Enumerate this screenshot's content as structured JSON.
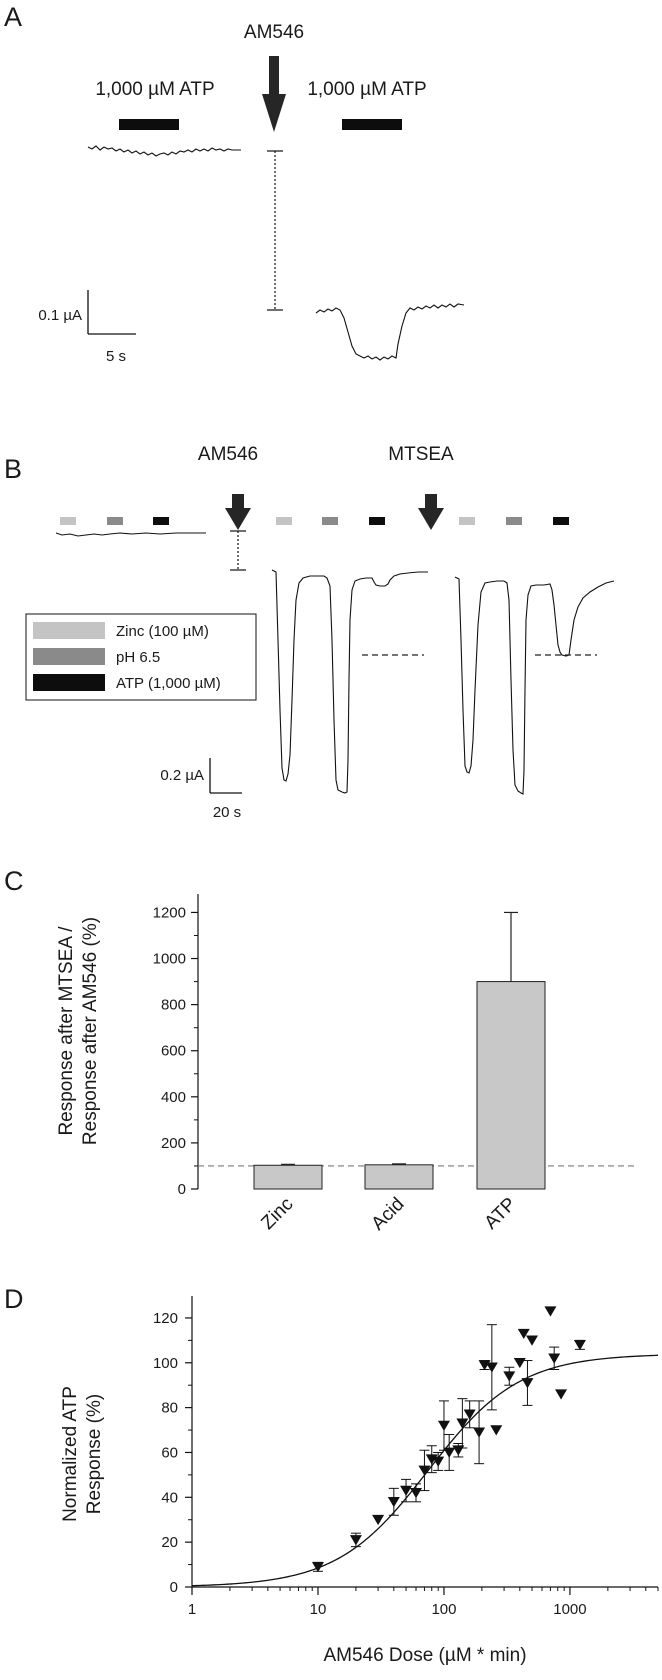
{
  "panel_a": {
    "letter": "A",
    "arrow_label": "AM546",
    "left_bar_label": "1,000 µM ATP",
    "right_bar_label": "1,000 µM ATP",
    "scale_y": "0.1 µA",
    "scale_x": "5 s"
  },
  "panel_b": {
    "letter": "B",
    "arrow1_label": "AM546",
    "arrow2_label": "MTSEA",
    "legend": [
      {
        "label": "Zinc (100 µM)",
        "color": "#c4c4c4"
      },
      {
        "label": "pH 6.5",
        "color": "#8a8a8a"
      },
      {
        "label": "ATP (1,000 µM)",
        "color": "#0d0d0d"
      }
    ],
    "scale_y": "0.2 µA",
    "scale_x": "20 s"
  },
  "panel_c": {
    "letter": "C",
    "chart_data": {
      "type": "bar",
      "ylabel_line1": "Response after MTSEA /",
      "ylabel_line2": "Response after AM546 (%)",
      "categories": [
        "Zinc",
        "Acid",
        "ATP"
      ],
      "values": [
        103,
        105,
        900
      ],
      "errors": [
        4,
        4,
        300
      ],
      "ylim": [
        0,
        1280
      ],
      "yticks": [
        0,
        200,
        400,
        600,
        800,
        1000,
        1200
      ],
      "reference_line": 100,
      "bar_color": "#c8c8c8"
    }
  },
  "panel_d": {
    "letter": "D",
    "chart_data": {
      "type": "scatter",
      "xlabel": "AM546 Dose (µM * min)",
      "ylabel_line1": "Normalized ATP",
      "ylabel_line2": "Response (%)",
      "x_scale": "log",
      "xlim": [
        1,
        5000
      ],
      "ylim": [
        0,
        128
      ],
      "xticks": [
        1,
        10,
        100,
        1000
      ],
      "yticks": [
        0,
        20,
        40,
        60,
        80,
        100,
        120
      ],
      "points": [
        {
          "x": 10,
          "y": 9,
          "err": 2
        },
        {
          "x": 20,
          "y": 21,
          "err": 3
        },
        {
          "x": 30,
          "y": 30,
          "err": 0
        },
        {
          "x": 40,
          "y": 38,
          "err": 6
        },
        {
          "x": 50,
          "y": 43,
          "err": 5
        },
        {
          "x": 60,
          "y": 42,
          "err": 4
        },
        {
          "x": 70,
          "y": 52,
          "err": 9
        },
        {
          "x": 80,
          "y": 57,
          "err": 6
        },
        {
          "x": 90,
          "y": 56,
          "err": 4
        },
        {
          "x": 100,
          "y": 72,
          "err": 11
        },
        {
          "x": 110,
          "y": 60,
          "err": 8
        },
        {
          "x": 130,
          "y": 61,
          "err": 3
        },
        {
          "x": 140,
          "y": 73,
          "err": 11
        },
        {
          "x": 160,
          "y": 77,
          "err": 6
        },
        {
          "x": 190,
          "y": 69,
          "err": 14
        },
        {
          "x": 210,
          "y": 99,
          "err": 2
        },
        {
          "x": 240,
          "y": 98,
          "err": 19
        },
        {
          "x": 260,
          "y": 70,
          "err": 0
        },
        {
          "x": 330,
          "y": 94,
          "err": 4
        },
        {
          "x": 400,
          "y": 100,
          "err": 0
        },
        {
          "x": 430,
          "y": 113,
          "err": 0
        },
        {
          "x": 460,
          "y": 91,
          "err": 10
        },
        {
          "x": 500,
          "y": 110,
          "err": 0
        },
        {
          "x": 700,
          "y": 123,
          "err": 0
        },
        {
          "x": 750,
          "y": 102,
          "err": 5
        },
        {
          "x": 850,
          "y": 86,
          "err": 0
        },
        {
          "x": 1200,
          "y": 108,
          "err": 2
        }
      ],
      "fit": {
        "bottom": 0,
        "top": 104,
        "ec50": 75,
        "hill": 1.2
      }
    }
  }
}
